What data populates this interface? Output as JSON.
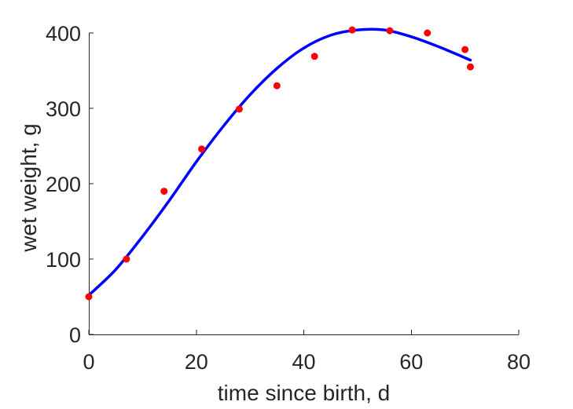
{
  "chart_data": {
    "type": "line",
    "title": "",
    "xlabel": "time since birth, d",
    "ylabel": "wet weight, g",
    "xlim": [
      0,
      80
    ],
    "ylim": [
      0,
      400
    ],
    "xticks": [
      0,
      20,
      40,
      60,
      80
    ],
    "yticks": [
      0,
      100,
      200,
      300,
      400
    ],
    "grid": false,
    "legend": "none",
    "series": [
      {
        "kind": "scatter",
        "color": "#ff0000",
        "x": [
          0,
          7,
          14,
          21,
          28,
          35,
          42,
          49,
          56,
          63,
          70,
          71
        ],
        "y": [
          50,
          100,
          190,
          246,
          299,
          330,
          369,
          404,
          403,
          400,
          378,
          355
        ]
      },
      {
        "kind": "line",
        "color": "#0000ff",
        "x": [
          0,
          5,
          10,
          15,
          20,
          25,
          30,
          35,
          40,
          45,
          50,
          55,
          60,
          65,
          71
        ],
        "y": [
          52,
          86,
          130,
          178,
          229,
          276,
          318,
          353,
          380,
          397,
          404,
          404,
          395,
          382,
          364
        ]
      }
    ]
  }
}
